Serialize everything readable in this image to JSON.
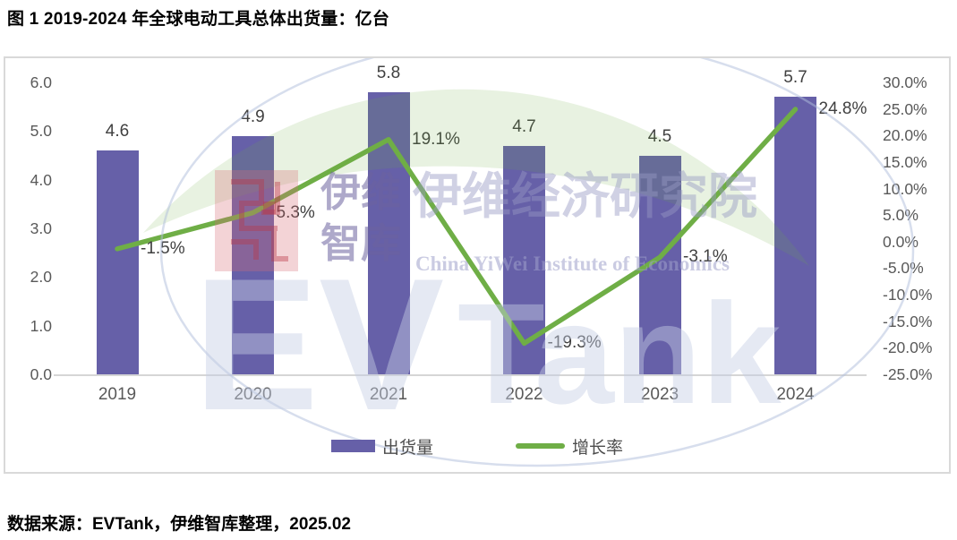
{
  "title": "图 1 2019-2024 年全球电动工具总体出货量：亿台",
  "source": "数据来源：EVTank，伊维智库整理，2025.02",
  "chart_data": {
    "type": "combo",
    "title": "图 1 2019-2024 年全球电动工具总体出货量：亿台",
    "categories": [
      "2019",
      "2020",
      "2021",
      "2022",
      "2023",
      "2024"
    ],
    "series": [
      {
        "name": "出货量",
        "type": "bar",
        "axis": "left",
        "unit": "亿台",
        "color": "#6660A8",
        "values": [
          4.6,
          4.9,
          5.8,
          4.7,
          4.5,
          5.7
        ],
        "labels": [
          "4.6",
          "4.9",
          "5.8",
          "4.7",
          "4.5",
          "5.7"
        ]
      },
      {
        "name": "增长率",
        "type": "line",
        "axis": "right",
        "unit": "%",
        "color": "#6FAE46",
        "values": [
          -1.5,
          5.3,
          19.1,
          -19.3,
          -3.1,
          24.8
        ],
        "labels": [
          "-1.5%",
          "5.3%",
          "19.1%",
          "-19.3%",
          "-3.1%",
          "24.8%"
        ]
      }
    ],
    "left_axis": {
      "min": 0,
      "max": 6,
      "ticks": [
        "6.0",
        "5.0",
        "4.0",
        "3.0",
        "2.0",
        "1.0",
        "0.0"
      ]
    },
    "right_axis": {
      "min": -25,
      "max": 30,
      "ticks": [
        "30.0%",
        "25.0%",
        "20.0%",
        "15.0%",
        "10.0%",
        "5.0%",
        "0.0%",
        "-5.0%",
        "-10.0%",
        "-15.0%",
        "-20.0%",
        "-25.0%"
      ]
    },
    "grid": false,
    "legend_position": "bottom"
  },
  "watermark": {
    "brand_ev": "EV",
    "brand_tank": "Tank",
    "logo_cn_top": "伊维",
    "logo_cn_bottom": "智库",
    "org_cn": "伊维经济研究院",
    "org_en": "China YiWei Institute of Economics"
  },
  "colors": {
    "bar": "#6660A8",
    "line": "#6FAE46",
    "axis_text": "#595959",
    "border": "#d9d9d9"
  }
}
